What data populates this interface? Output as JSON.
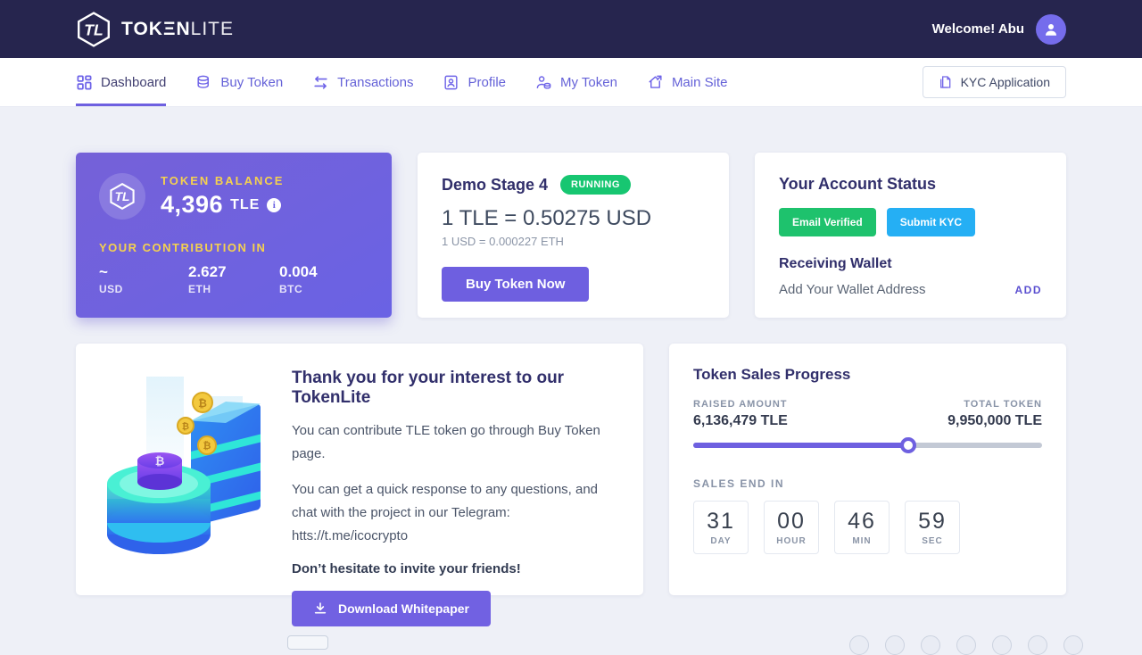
{
  "topbar": {
    "logo_primary": "TOKΞN",
    "logo_secondary": "LITE",
    "welcome_text": "Welcome! Abu"
  },
  "nav": {
    "items": [
      {
        "label": "Dashboard",
        "active": true
      },
      {
        "label": "Buy Token",
        "active": false
      },
      {
        "label": "Transactions",
        "active": false
      },
      {
        "label": "Profile",
        "active": false
      },
      {
        "label": "My Token",
        "active": false
      },
      {
        "label": "Main Site",
        "active": false
      }
    ],
    "kyc_button_label": "KYC Application"
  },
  "balance_card": {
    "title": "TOKEN BALANCE",
    "amount": "4,396",
    "symbol": "TLE",
    "info_glyph": "i",
    "contribution_title": "YOUR CONTRIBUTION IN",
    "contributions": [
      {
        "value": "~",
        "currency": "USD"
      },
      {
        "value": "2.627",
        "currency": "ETH"
      },
      {
        "value": "0.004",
        "currency": "BTC"
      }
    ]
  },
  "stage_card": {
    "title": "Demo Stage 4",
    "status": "RUNNING",
    "rate": "1 TLE = 0.50275 USD",
    "sub_rate": "1 USD = 0.000227 ETH",
    "buy_button_label": "Buy Token Now"
  },
  "account_card": {
    "title": "Your Account Status",
    "email_badge": "Email Verified",
    "kyc_badge": "Submit KYC",
    "wallet_title": "Receiving Wallet",
    "wallet_hint": "Add Your Wallet Address",
    "add_link": "ADD"
  },
  "thankyou_card": {
    "title": "Thank you for your interest to our TokenLite",
    "paragraph1": "You can contribute TLE token go through Buy Token page.",
    "paragraph2": "You can get a quick response to any questions, and chat with the project in our Telegram: htts://t.me/icocrypto",
    "invite_line": "Don’t hesitate to invite your friends!",
    "download_button_label": "Download Whitepaper"
  },
  "progress_card": {
    "title": "Token Sales Progress",
    "raised_label": "RAISED AMOUNT",
    "raised_value": "6,136,479 TLE",
    "total_label": "TOTAL TOKEN",
    "total_value": "9,950,000 TLE",
    "percent": 61.7,
    "sales_end_label": "SALES END IN",
    "countdown": [
      {
        "value": "31",
        "unit": "DAY"
      },
      {
        "value": "00",
        "unit": "HOUR"
      },
      {
        "value": "46",
        "unit": "MIN"
      },
      {
        "value": "59",
        "unit": "SEC"
      }
    ]
  },
  "colors": {
    "topbar_bg": "#26254e",
    "accent_purple": "#6e60e0",
    "card_gradient_start": "#7561d8",
    "card_gradient_end": "#6a62e4",
    "gold_label": "#f5d14f",
    "green_badge": "#1ec26d",
    "running_badge": "#17c671",
    "blue_badge": "#25aff4",
    "heading_navy": "#312f6b",
    "muted_gray": "#8b95a7",
    "page_bg": "#eef0f7"
  }
}
